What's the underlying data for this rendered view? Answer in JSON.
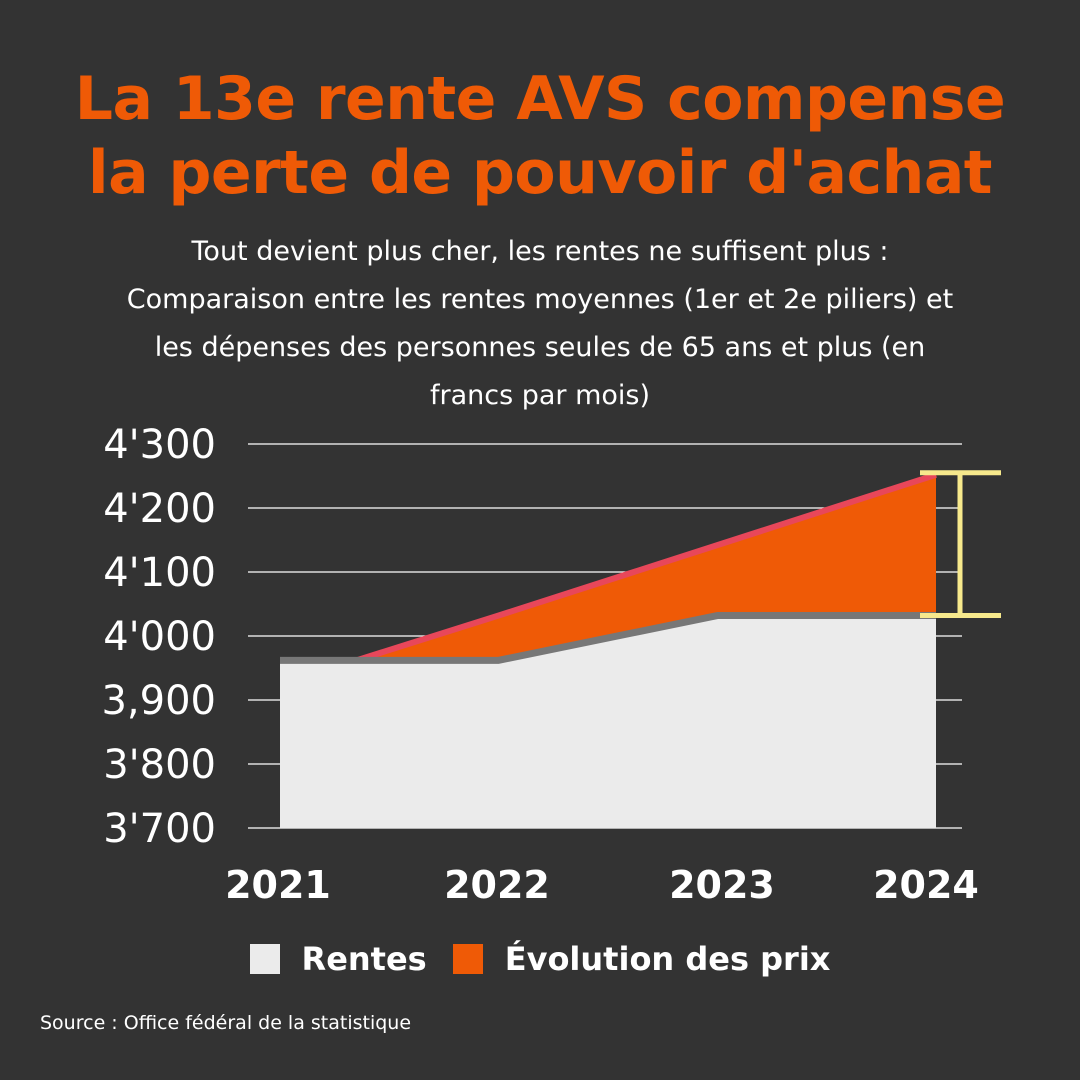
{
  "title_lines": [
    "La 13e rente AVS compense",
    "la perte de pouvoir d'achat"
  ],
  "subtitle_lines": [
    "Tout devient plus cher, les rentes ne suffisent plus :",
    "Comparaison entre les rentes moyennes (1er et 2e piliers) et",
    "les dépenses des personnes seules de 65 ans et plus (en",
    "francs par mois)"
  ],
  "source": "Source : Office fédéral de la statistique",
  "colors": {
    "background": "#333333",
    "title": "#ef5a06",
    "rentes_fill": "#ebebeb",
    "prix_fill": "#ef5a06",
    "prix_line": "#e8475a",
    "rentes_line": "#777777",
    "gap_bracket": "#f7e98c",
    "grid": "#ffffff"
  },
  "chart_data": {
    "type": "area",
    "title": "La 13e rente AVS compense la perte de pouvoir d'achat",
    "categories": [
      "2021",
      "2022",
      "2023",
      "2024"
    ],
    "ylim": [
      3700,
      4300
    ],
    "yticks": [
      4300,
      4200,
      4100,
      4000,
      3900,
      3800,
      3700
    ],
    "ytick_labels": [
      "4'300",
      "4'200",
      "4'100",
      "4'000",
      "3,900",
      "3'800",
      "3'700"
    ],
    "grid": true,
    "legend_position": "bottom",
    "series": [
      {
        "name": "Rentes",
        "values": [
          3962,
          3962,
          4032,
          4032
        ]
      },
      {
        "name": "Évolution des prix",
        "values": [
          3962,
          4032,
          4142,
          4252
        ]
      }
    ]
  }
}
